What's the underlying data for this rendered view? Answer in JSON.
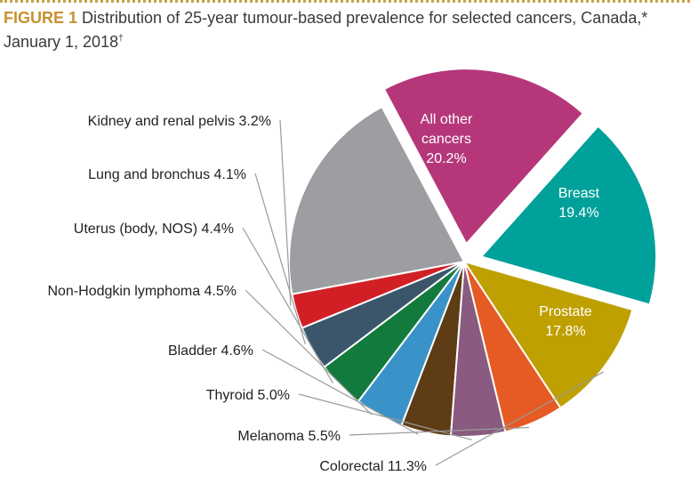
{
  "figure": {
    "label": "FIGURE 1",
    "title_line1": "Distribution of 25-year tumour-based prevalence for selected cancers, Canada,*",
    "title_line2": "January 1, 2018",
    "title_dagger": "†"
  },
  "chart_data": {
    "type": "pie",
    "title": "Distribution of 25-year tumour-based prevalence for selected cancers, Canada,* January 1, 2018†",
    "slices": [
      {
        "label": "Breast",
        "value": 19.4,
        "display": "19.4%",
        "color": "#b5377a",
        "exploded": true,
        "label_inside": true
      },
      {
        "label": "Prostate",
        "value": 17.8,
        "display": "17.8%",
        "color": "#00a19a",
        "exploded": true,
        "label_inside": true
      },
      {
        "label": "Colorectal",
        "value": 11.3,
        "display": "11.3%",
        "color": "#bea000",
        "exploded": false,
        "label_inside": false
      },
      {
        "label": "Melanoma",
        "value": 5.5,
        "display": "5.5%",
        "color": "#e65a24",
        "exploded": false,
        "label_inside": false
      },
      {
        "label": "Thyroid",
        "value": 5.0,
        "display": "5.0%",
        "color": "#8a5a80",
        "exploded": false,
        "label_inside": false
      },
      {
        "label": "Bladder",
        "value": 4.6,
        "display": "4.6%",
        "color": "#5e3c16",
        "exploded": false,
        "label_inside": false
      },
      {
        "label": "Non-Hodgkin lymphoma",
        "value": 4.5,
        "display": "4.5%",
        "color": "#3a93c8",
        "exploded": false,
        "label_inside": false
      },
      {
        "label": "Uterus (body, NOS)",
        "value": 4.4,
        "display": "4.4%",
        "color": "#127a3c",
        "exploded": false,
        "label_inside": false
      },
      {
        "label": "Lung and bronchus",
        "value": 4.1,
        "display": "4.1%",
        "color": "#3b566b",
        "exploded": false,
        "label_inside": false
      },
      {
        "label": "Kidney and renal pelvis",
        "value": 3.2,
        "display": "3.2%",
        "color": "#d21f26",
        "exploded": false,
        "label_inside": false
      },
      {
        "label": "All other cancers",
        "label_lines": [
          "All other",
          "cancers"
        ],
        "value": 20.2,
        "display": "20.2%",
        "color": "#9d9ea2",
        "exploded": false,
        "label_inside": true
      }
    ]
  }
}
